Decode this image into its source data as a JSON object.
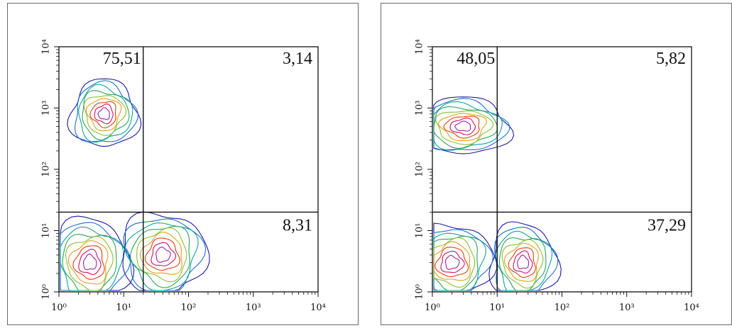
{
  "chart_data": [
    {
      "type": "contour",
      "scale": "log",
      "xlim": [
        1,
        10000
      ],
      "ylim": [
        1,
        10000
      ],
      "x_ticks": [
        "10⁰",
        "10¹",
        "10²",
        "10³",
        "10⁴"
      ],
      "y_ticks": [
        "10⁰",
        "10¹",
        "10²",
        "10³",
        "10⁴"
      ],
      "quadrant_gates": {
        "x": 20,
        "y": 20
      },
      "quadrant_percentages": {
        "upper_left": "75,51",
        "upper_right": "3,14",
        "lower_left": "",
        "lower_right": "8,31"
      },
      "populations": [
        {
          "x": 5,
          "y": 800,
          "sx": 1.9,
          "sy": 1.9
        },
        {
          "x": 3,
          "y": 3,
          "sx": 2.2,
          "sy": 2.5
        },
        {
          "x": 40,
          "y": 4,
          "sx": 2.4,
          "sy": 2.4
        }
      ]
    },
    {
      "type": "contour",
      "scale": "log",
      "xlim": [
        1,
        10000
      ],
      "ylim": [
        1,
        10000
      ],
      "x_ticks": [
        "10⁰",
        "10¹",
        "10²",
        "10³",
        "10⁴"
      ],
      "y_ticks": [
        "10⁰",
        "10¹",
        "10²",
        "10³",
        "10⁴"
      ],
      "quadrant_gates": {
        "x": 10,
        "y": 20
      },
      "quadrant_percentages": {
        "upper_left": "48,05",
        "upper_right": "5,82",
        "lower_left": "",
        "lower_right": "37,29"
      },
      "populations": [
        {
          "x": 3,
          "y": 500,
          "sx": 2.6,
          "sy": 1.6
        },
        {
          "x": 25,
          "y": 3,
          "sx": 1.9,
          "sy": 2.2
        },
        {
          "x": 2,
          "y": 3,
          "sx": 2.3,
          "sy": 2.2
        }
      ]
    }
  ],
  "contour_colors": [
    "#1a1aa0",
    "#1e6fd0",
    "#12a0a0",
    "#2aa45a",
    "#8ac030",
    "#e0a020",
    "#e04010",
    "#d01060",
    "#a020a0"
  ]
}
